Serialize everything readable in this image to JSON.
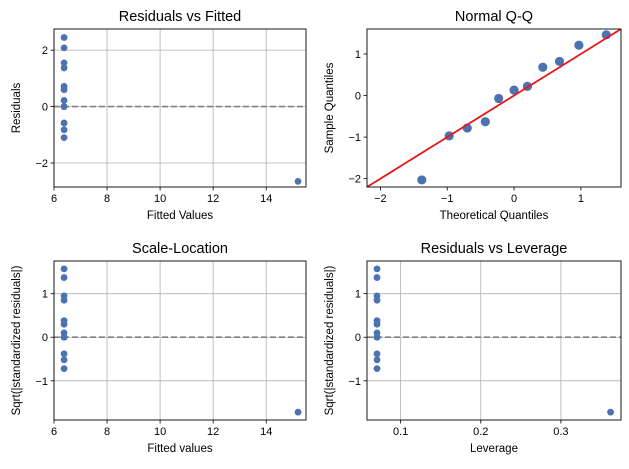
{
  "chart_data": [
    {
      "type": "scatter",
      "title": "Residuals vs Fitted",
      "xlabel": "Fitted Values",
      "ylabel": "Residuals",
      "xlim": [
        6.0,
        15.5
      ],
      "ylim": [
        -2.85,
        2.75
      ],
      "xticks": [
        6,
        8,
        10,
        12,
        14
      ],
      "yticks": [
        -2,
        0,
        2
      ],
      "grid": true,
      "reference_line": {
        "y": 0,
        "style": "dashed",
        "color": "#808080"
      },
      "point_color": "#4c72b0",
      "x": [
        6.38,
        6.38,
        6.38,
        6.38,
        6.38,
        6.38,
        6.38,
        6.38,
        6.38,
        6.38,
        6.38,
        6.38,
        15.2
      ],
      "y": [
        2.45,
        2.08,
        1.55,
        1.37,
        0.72,
        0.6,
        0.22,
        -0.58,
        -0.82,
        -1.1,
        0.0,
        0.0,
        -2.65
      ]
    },
    {
      "type": "scatter",
      "title": "Normal Q-Q",
      "xlabel": "Theoretical Quantiles",
      "ylabel": "Sample Quantiles",
      "xlim": [
        -2.2,
        1.6
      ],
      "ylim": [
        -2.2,
        1.6
      ],
      "xticks": [
        -2,
        -1,
        0,
        1
      ],
      "yticks": [
        -2,
        -1,
        0,
        1
      ],
      "grid": false,
      "reference_line": {
        "type": "45-degree",
        "color": "#e8151b"
      },
      "point_color": "#4c72b0",
      "x": [
        -1.38,
        -0.97,
        -0.7,
        -0.43,
        -0.23,
        0.0,
        0.2,
        0.43,
        0.68,
        0.97,
        1.38
      ],
      "y": [
        -2.03,
        -0.97,
        -0.78,
        -0.63,
        -0.07,
        0.13,
        0.22,
        0.68,
        0.82,
        1.21,
        1.46
      ]
    },
    {
      "type": "scatter",
      "title": "Scale-Location",
      "xlabel": "Fitted values",
      "ylabel": "Sqrt(|standardized residuals|)",
      "xlim": [
        6.0,
        15.5
      ],
      "ylim": [
        -1.9,
        1.75
      ],
      "xticks": [
        6,
        8,
        10,
        12,
        14
      ],
      "yticks": [
        -1,
        0,
        1
      ],
      "grid": true,
      "reference_line": {
        "y": 0,
        "style": "dashed",
        "color": "#808080"
      },
      "point_color": "#4c72b0",
      "x": [
        6.38,
        6.38,
        6.38,
        6.38,
        6.38,
        6.38,
        6.38,
        6.38,
        6.38,
        6.38,
        6.38,
        6.38,
        15.2
      ],
      "y": [
        1.57,
        1.37,
        0.95,
        0.85,
        0.38,
        0.3,
        0.1,
        -0.38,
        -0.52,
        -0.72,
        0.0,
        0.0,
        -1.72
      ]
    },
    {
      "type": "scatter",
      "title": "Residuals vs Leverage",
      "xlabel": "Leverage",
      "ylabel": "Sqrt(|standardized residuals|)",
      "xlim": [
        0.058,
        0.375
      ],
      "ylim": [
        -1.9,
        1.75
      ],
      "xticks": [
        0.1,
        0.2,
        0.3
      ],
      "yticks": [
        -1,
        0,
        1
      ],
      "grid": true,
      "reference_line": {
        "y": 0,
        "style": "dashed",
        "color": "#808080"
      },
      "point_color": "#4c72b0",
      "x": [
        0.0705,
        0.0705,
        0.0705,
        0.0705,
        0.0705,
        0.0705,
        0.0705,
        0.0705,
        0.0705,
        0.0705,
        0.0705,
        0.0705,
        0.362
      ],
      "y": [
        1.57,
        1.37,
        0.95,
        0.85,
        0.38,
        0.3,
        0.1,
        -0.38,
        -0.52,
        -0.72,
        0.0,
        0.0,
        -1.72
      ]
    }
  ]
}
